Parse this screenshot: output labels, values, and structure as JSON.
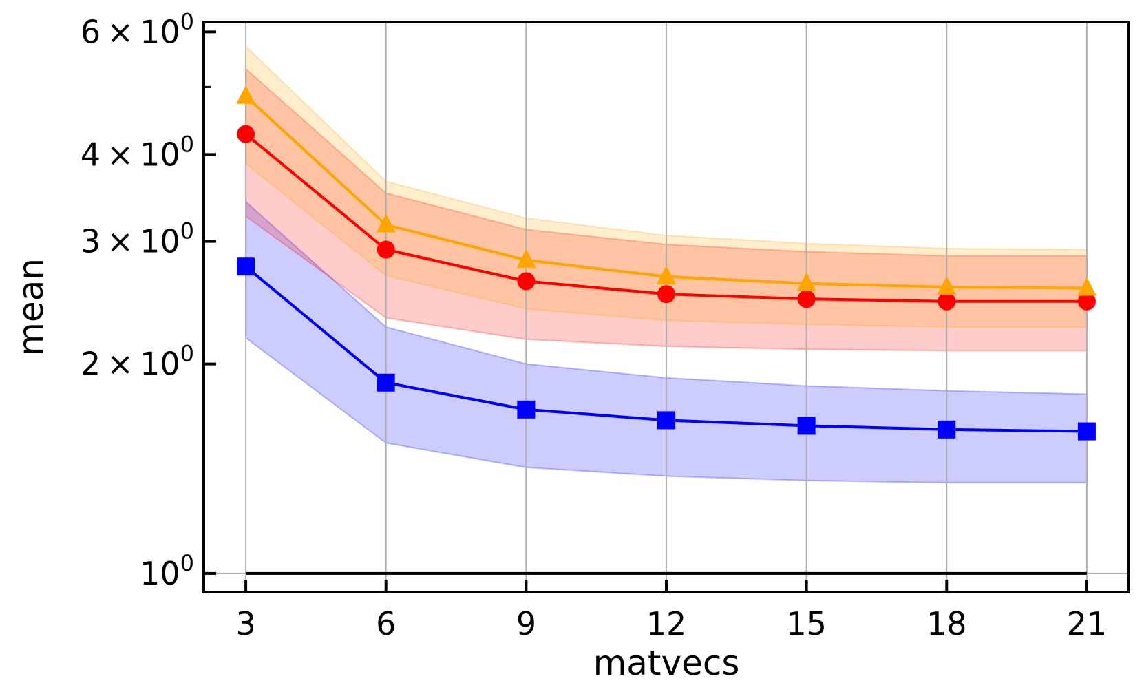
{
  "chart_data": {
    "type": "line",
    "title": "",
    "xlabel": "matvecs",
    "ylabel": "mean",
    "yscale": "log",
    "x": [
      3,
      6,
      9,
      12,
      15,
      18,
      21
    ],
    "xticks": [
      3,
      6,
      9,
      12,
      15,
      18,
      21
    ],
    "xtick_labels": [
      "3",
      "6",
      "9",
      "12",
      "15",
      "18",
      "21"
    ],
    "xlim": [
      2.1,
      21.9
    ],
    "ylim": [
      0.94,
      6.2
    ],
    "yticks": [
      {
        "value": 1,
        "mantissa": "",
        "base": "10",
        "exp": "0"
      },
      {
        "value": 2,
        "mantissa": "2",
        "base": "10",
        "exp": "0"
      },
      {
        "value": 3,
        "mantissa": "3",
        "base": "10",
        "exp": "0"
      },
      {
        "value": 4,
        "mantissa": "4",
        "base": "10",
        "exp": "0"
      },
      {
        "value": 6,
        "mantissa": "6",
        "base": "10",
        "exp": "0"
      }
    ],
    "minor_yticks": [
      5
    ],
    "grid": "x",
    "reference_line": {
      "y": 1,
      "x_from": 3,
      "x_to": 21,
      "color": "#000000"
    },
    "series": [
      {
        "name": "blue-square",
        "color": "#0000ff",
        "marker": "square",
        "values": [
          2.76,
          1.88,
          1.72,
          1.66,
          1.63,
          1.61,
          1.6
        ],
        "band_lower": [
          2.18,
          1.54,
          1.42,
          1.38,
          1.36,
          1.35,
          1.35
        ],
        "band_upper": [
          3.42,
          2.26,
          2.0,
          1.91,
          1.86,
          1.83,
          1.81
        ]
      },
      {
        "name": "red-circle",
        "color": "#ff0000",
        "marker": "circle",
        "values": [
          4.28,
          2.92,
          2.63,
          2.52,
          2.48,
          2.46,
          2.46
        ],
        "band_lower": [
          3.26,
          2.33,
          2.17,
          2.12,
          2.1,
          2.09,
          2.09
        ],
        "band_upper": [
          5.31,
          3.52,
          3.12,
          2.97,
          2.9,
          2.86,
          2.86
        ]
      },
      {
        "name": "orange-triangle",
        "color": "#ffa500",
        "marker": "triangle",
        "values": [
          4.85,
          3.17,
          2.82,
          2.67,
          2.61,
          2.58,
          2.57
        ],
        "band_lower": [
          3.88,
          2.68,
          2.4,
          2.31,
          2.28,
          2.26,
          2.26
        ],
        "band_upper": [
          5.72,
          3.66,
          3.24,
          3.06,
          2.98,
          2.93,
          2.92
        ]
      }
    ]
  }
}
